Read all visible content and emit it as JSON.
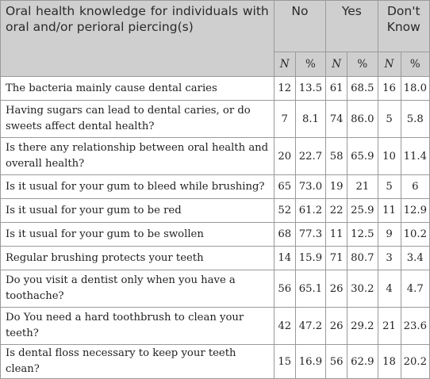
{
  "table": {
    "title": "Oral health knowledge for individuals with oral and/or perioral piercing(s)",
    "groups": [
      "No",
      "Yes",
      "Don't Know"
    ],
    "subheaders": [
      "N",
      "%",
      "N",
      "%",
      "N",
      "%"
    ],
    "rows": [
      {
        "q": "The bacteria mainly cause dental caries",
        "v": [
          "12",
          "13.5",
          "61",
          "68.5",
          "16",
          "18.0"
        ]
      },
      {
        "q": "Having sugars can lead to dental caries, or do sweets affect dental health?",
        "v": [
          "7",
          "8.1",
          "74",
          "86.0",
          "5",
          "5.8"
        ]
      },
      {
        "q": "Is there any relationship between oral health and overall health?",
        "v": [
          "20",
          "22.7",
          "58",
          "65.9",
          "10",
          "11.4"
        ]
      },
      {
        "q": "Is it usual for your gum to bleed while brushing?",
        "v": [
          "65",
          "73.0",
          "19",
          "21",
          "5",
          "6"
        ]
      },
      {
        "q": "Is it usual for your gum to be red",
        "v": [
          "52",
          "61.2",
          "22",
          "25.9",
          "11",
          "12.9"
        ]
      },
      {
        "q": "Is it usual for your gum to be swollen",
        "v": [
          "68",
          "77.3",
          "11",
          "12.5",
          "9",
          "10.2"
        ]
      },
      {
        "q": "Regular brushing protects your teeth",
        "v": [
          "14",
          "15.9",
          "71",
          "80.7",
          "3",
          "3.4"
        ]
      },
      {
        "q": "Do you visit a dentist only when you have a toothache?",
        "v": [
          "56",
          "65.1",
          "26",
          "30.2",
          "4",
          "4.7"
        ]
      },
      {
        "q": "Do You need a hard toothbrush to clean your teeth?",
        "v": [
          "42",
          "47.2",
          "26",
          "29.2",
          "21",
          "23.6"
        ]
      },
      {
        "q": "Is dental floss necessary to keep your teeth clean?",
        "v": [
          "15",
          "16.9",
          "56",
          "62.9",
          "18",
          "20.2"
        ]
      }
    ]
  }
}
